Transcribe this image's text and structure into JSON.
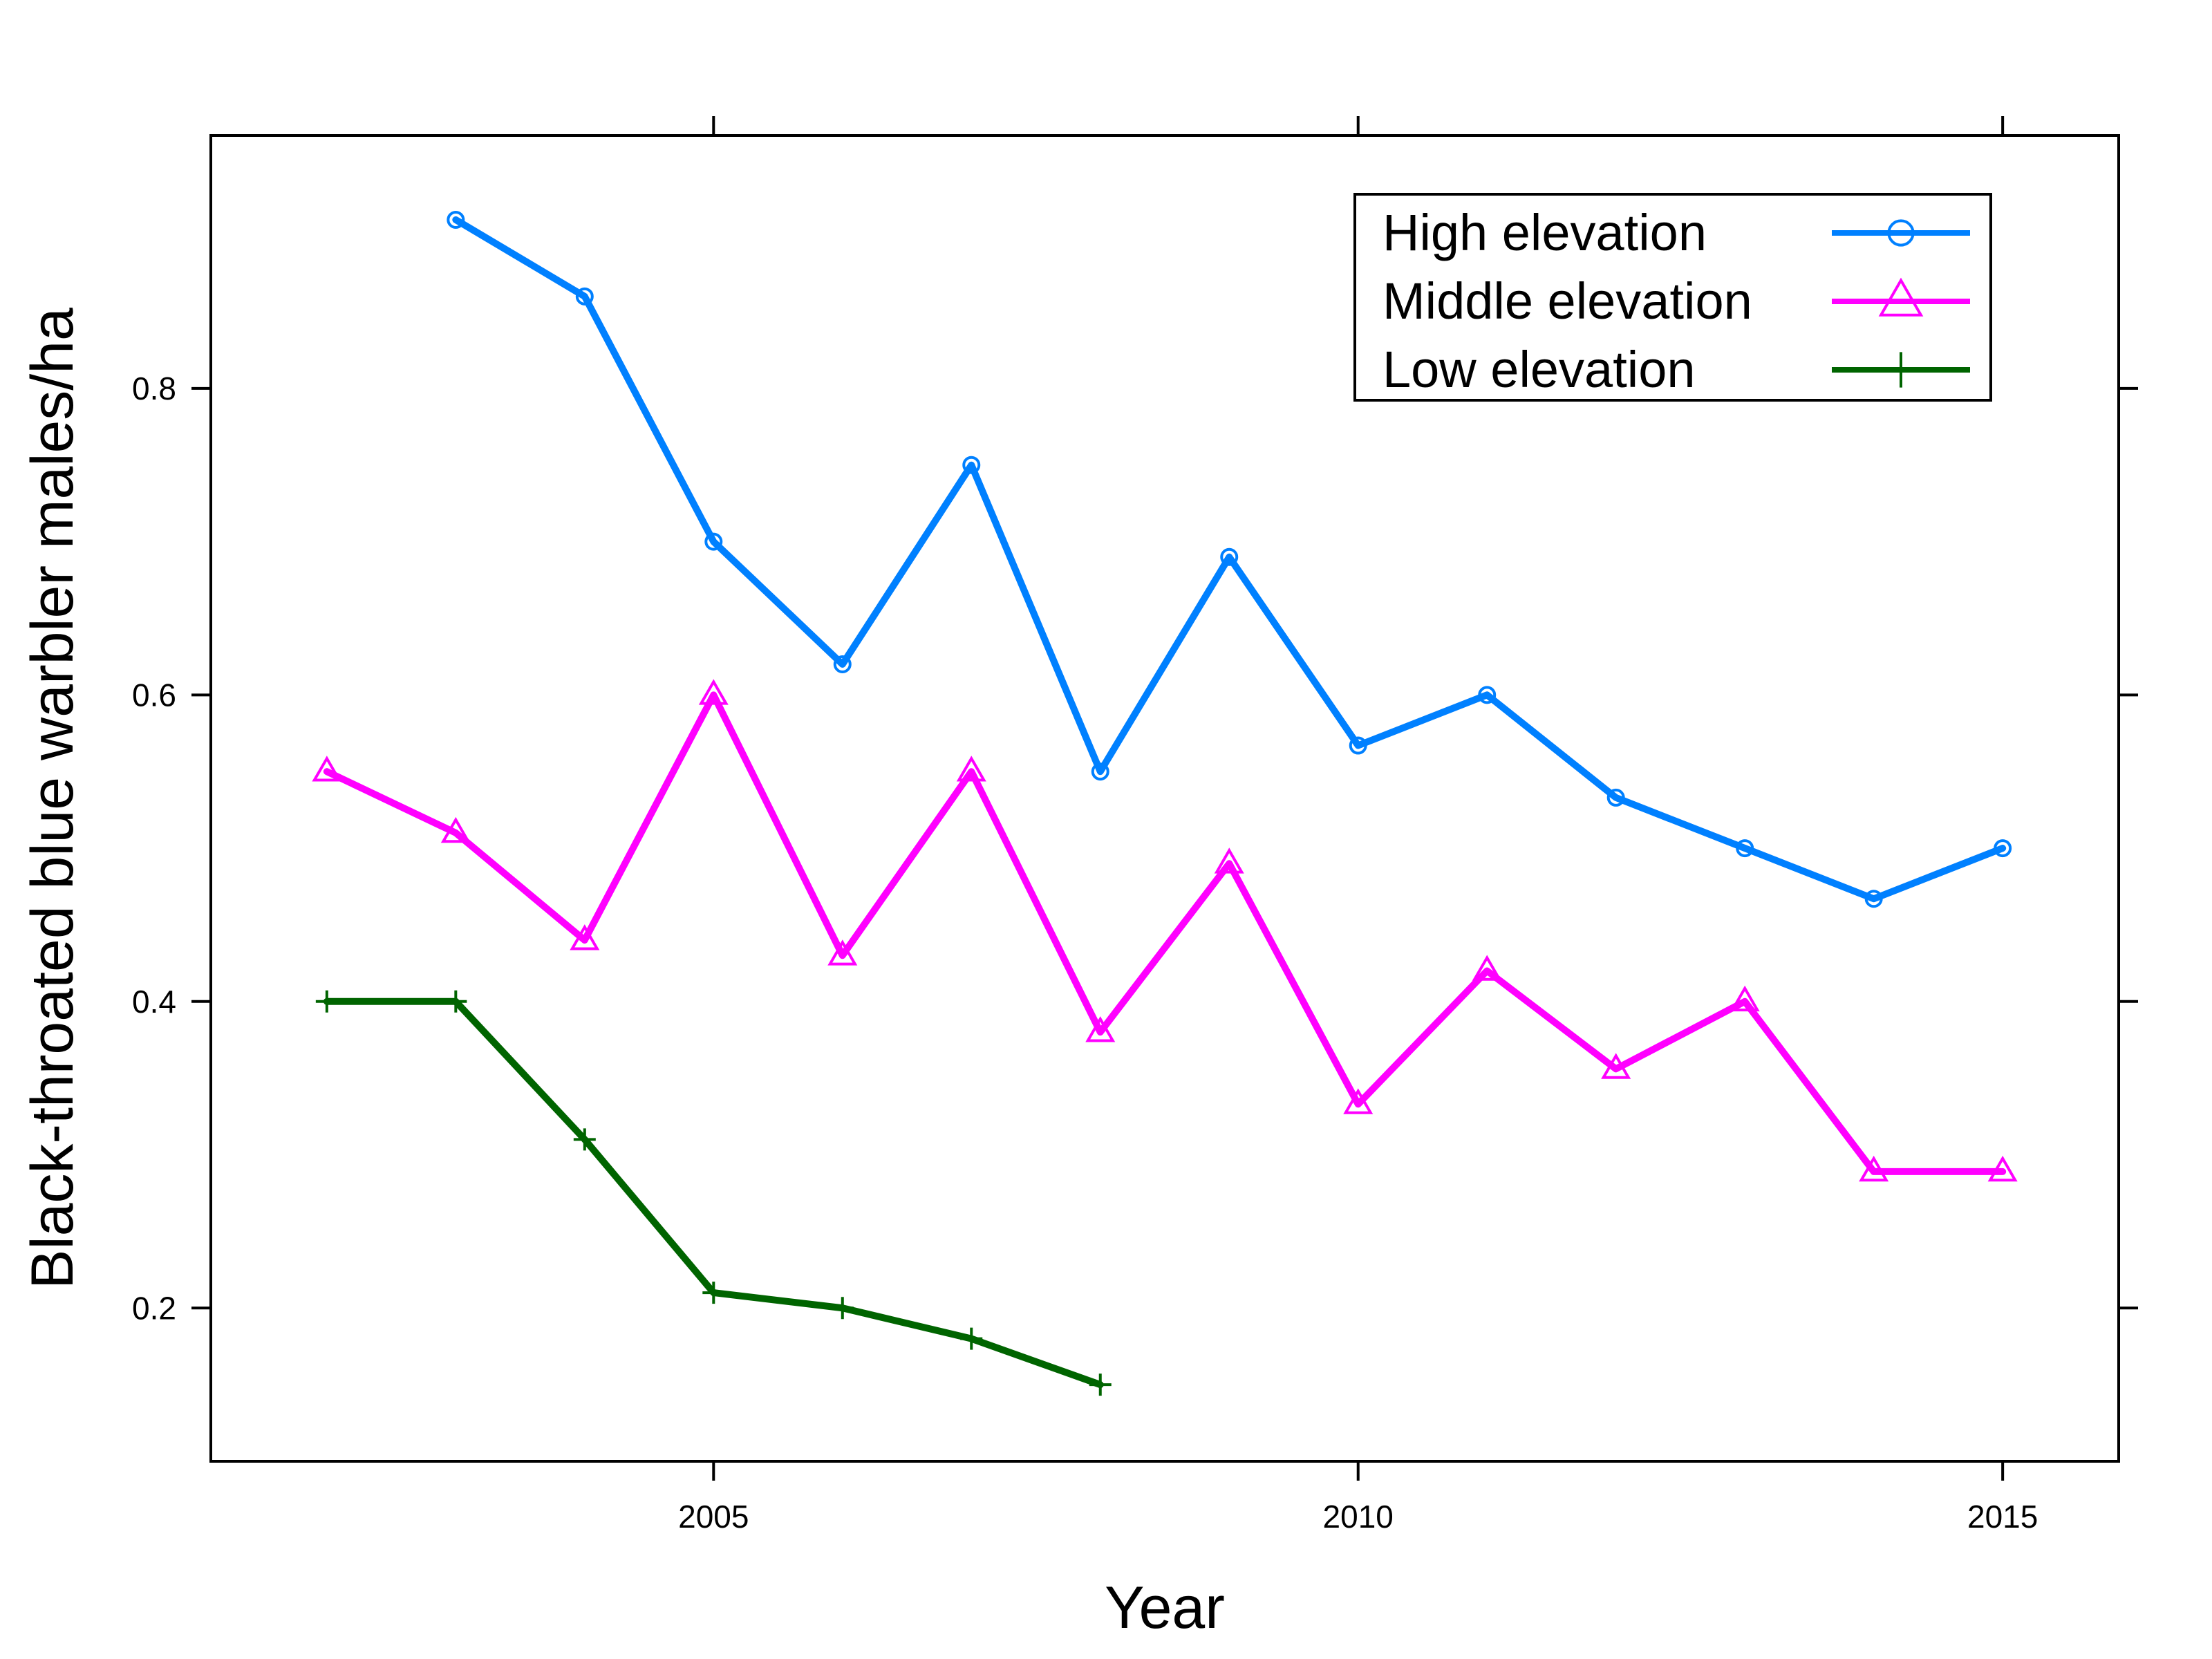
{
  "chart_data": {
    "type": "line",
    "title": "",
    "xlabel": "Year",
    "ylabel": "Black-throated blue warbler males/ha",
    "xlim": [
      2001.1,
      2015.9
    ],
    "ylim": [
      0.1,
      0.965
    ],
    "xticks": [
      2005,
      2010,
      2015
    ],
    "yticks": [
      0.2,
      0.4,
      0.6,
      0.8
    ],
    "grid": false,
    "legend_position": "top-right",
    "series": [
      {
        "name": "High elevation",
        "color": "#0080ff",
        "marker": "circle",
        "x": [
          2003,
          2004,
          2005,
          2006,
          2007,
          2008,
          2009,
          2010,
          2011,
          2012,
          2013,
          2014,
          2015
        ],
        "values": [
          0.91,
          0.86,
          0.7,
          0.62,
          0.75,
          0.55,
          0.69,
          0.567,
          0.6,
          0.533,
          0.5,
          0.467,
          0.5
        ]
      },
      {
        "name": "Middle elevation",
        "color": "#ff00ff",
        "marker": "triangle",
        "x": [
          2002,
          2003,
          2004,
          2005,
          2006,
          2007,
          2008,
          2009,
          2010,
          2011,
          2012,
          2013,
          2014,
          2015
        ],
        "values": [
          0.55,
          0.51,
          0.44,
          0.6,
          0.43,
          0.55,
          0.38,
          0.49,
          0.333,
          0.42,
          0.356,
          0.4,
          0.289,
          0.289
        ]
      },
      {
        "name": "Low elevation",
        "color": "#006400",
        "marker": "plus",
        "x": [
          2002,
          2003,
          2004,
          2005,
          2006,
          2007,
          2008
        ],
        "values": [
          0.4,
          0.4,
          0.31,
          0.21,
          0.2,
          0.18,
          0.15
        ]
      }
    ]
  }
}
